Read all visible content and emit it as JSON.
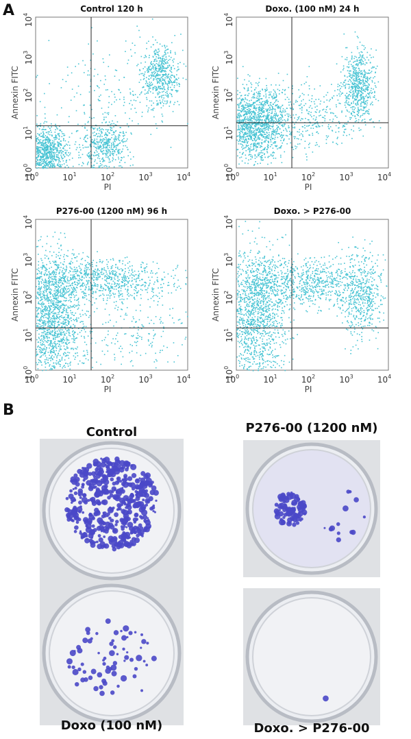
{
  "panel_a": {
    "label": "A",
    "tick_base": "10",
    "tick_exponents": [
      "0",
      "1",
      "2",
      "3",
      "4"
    ],
    "x_label": "PI",
    "y_label": "Annexin FITC",
    "plots": [
      {
        "title": "Control 120 h"
      },
      {
        "title": "Doxo. (100 nM) 24 h"
      },
      {
        "title": "P276-00 (1200 nM) 96 h"
      },
      {
        "title": "Doxo. > P276-00"
      }
    ]
  },
  "panel_b": {
    "label": "B",
    "dishes": [
      {
        "label": "Control"
      },
      {
        "label": "P276-00 (1200 nM)"
      },
      {
        "label": "Doxo (100 nM)"
      },
      {
        "label": "Doxo. > P276-00"
      }
    ]
  }
}
